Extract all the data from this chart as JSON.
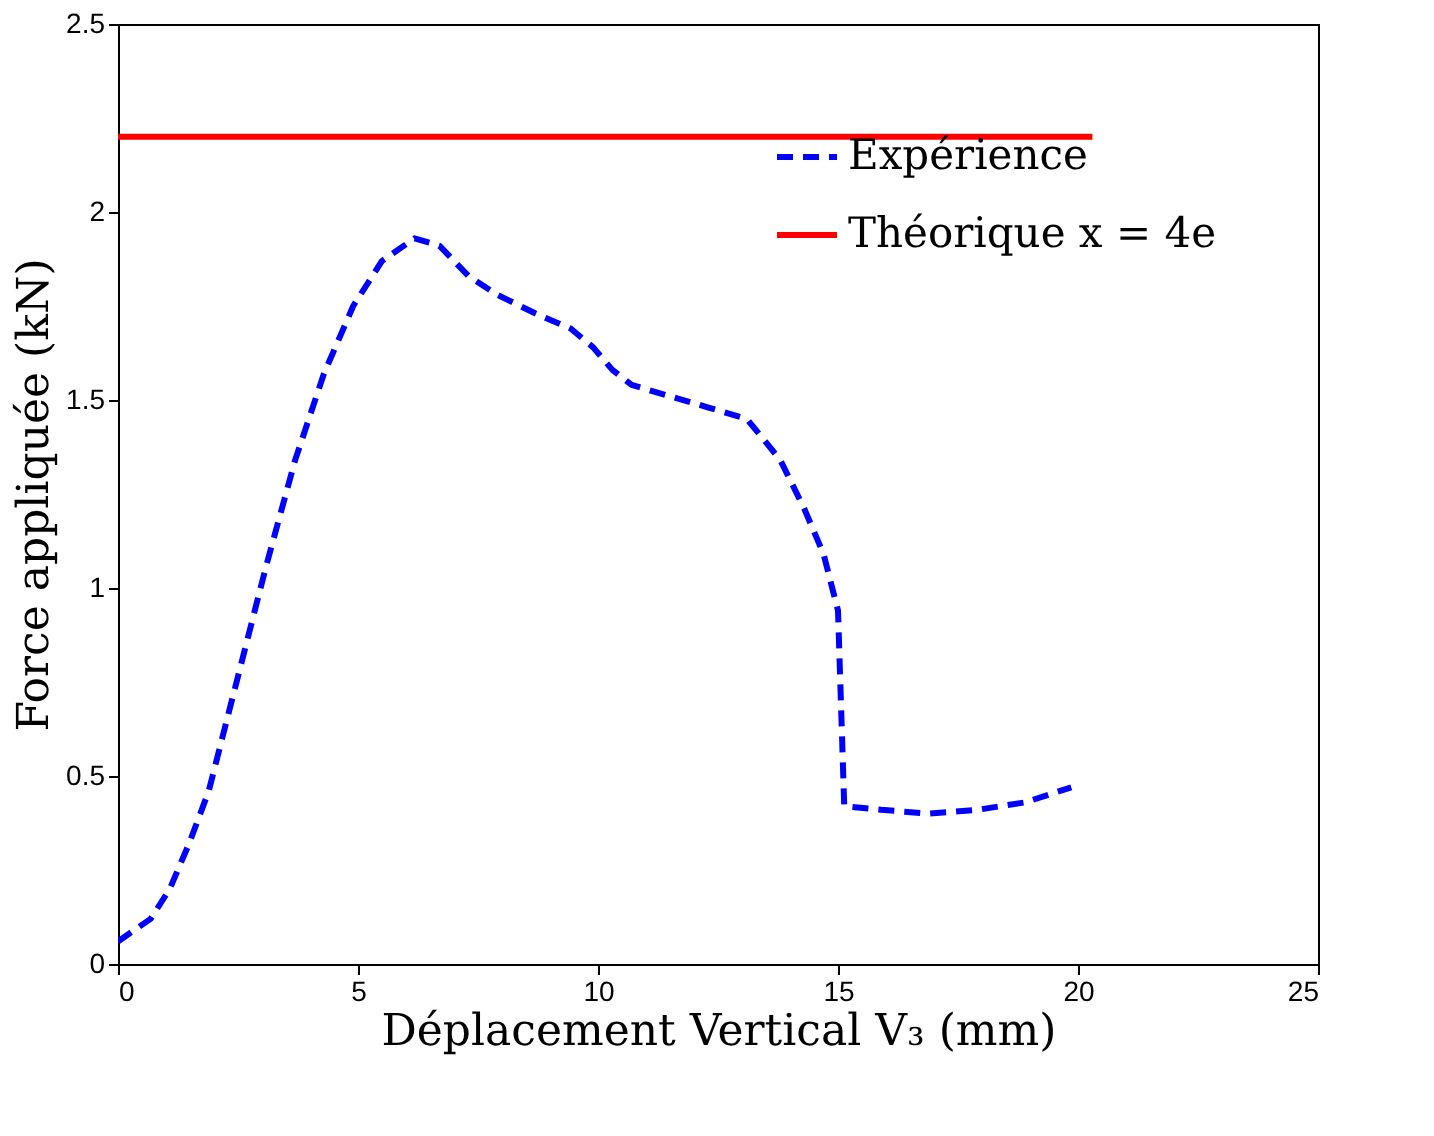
{
  "chart_data": {
    "type": "line",
    "xlabel": "Déplacement Vertical V₃ (mm)",
    "ylabel": "Force appliquée (kN)",
    "xlim": [
      0,
      25
    ],
    "xticks": [
      0,
      5,
      10,
      15,
      20,
      25
    ],
    "ylim": [
      0,
      2.5
    ],
    "yticks": [
      0,
      0.5,
      1,
      1.5,
      2,
      2.5
    ],
    "grid": false,
    "legend": "top right",
    "series": [
      {
        "name": "Expérience",
        "color": "#0000ff",
        "line_style": "dashed",
        "x": [
          0,
          0.68,
          1.08,
          1.48,
          1.89,
          2.49,
          3.09,
          3.69,
          4.29,
          4.9,
          5.5,
          6.18,
          6.7,
          7.3,
          7.9,
          8.7,
          9.43,
          9.9,
          10.3,
          10.7,
          11.5,
          12.3,
          13.1,
          13.8,
          14.3,
          14.7,
          15.0,
          15.13,
          15.9,
          16.9,
          17.9,
          18.9,
          19.86
        ],
        "values": [
          0.06,
          0.12,
          0.2,
          0.32,
          0.46,
          0.76,
          1.06,
          1.34,
          1.57,
          1.75,
          1.87,
          1.93,
          1.91,
          1.83,
          1.78,
          1.73,
          1.69,
          1.64,
          1.58,
          1.54,
          1.51,
          1.48,
          1.45,
          1.34,
          1.21,
          1.09,
          0.94,
          0.42,
          0.41,
          0.4,
          0.41,
          0.43,
          0.47
        ]
      },
      {
        "name": "Théorique x = 4e",
        "color": "#ff0000",
        "line_style": "solid",
        "x": [
          0,
          20.3
        ],
        "values": [
          2.2,
          2.2
        ]
      }
    ]
  }
}
